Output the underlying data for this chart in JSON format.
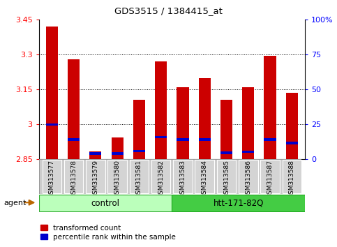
{
  "title": "GDS3515 / 1384415_at",
  "samples": [
    "GSM313577",
    "GSM313578",
    "GSM313579",
    "GSM313580",
    "GSM313581",
    "GSM313582",
    "GSM313583",
    "GSM313584",
    "GSM313585",
    "GSM313586",
    "GSM313587",
    "GSM313588"
  ],
  "bar_values": [
    3.42,
    3.28,
    2.885,
    2.945,
    3.105,
    3.27,
    3.16,
    3.2,
    3.105,
    3.16,
    3.295,
    3.135
  ],
  "percentile_values": [
    3.0,
    2.935,
    2.875,
    2.875,
    2.885,
    2.945,
    2.935,
    2.935,
    2.878,
    2.882,
    2.935,
    2.92
  ],
  "ymin": 2.85,
  "ymax": 3.45,
  "yticks": [
    2.85,
    3.0,
    3.15,
    3.3,
    3.45
  ],
  "ytick_labels": [
    "2.85",
    "3",
    "3.15",
    "3.3",
    "3.45"
  ],
  "right_yticks": [
    0,
    25,
    50,
    75,
    100
  ],
  "right_ytick_labels": [
    "0",
    "25",
    "50",
    "75",
    "100%"
  ],
  "bar_color": "#cc0000",
  "percentile_color": "#0000cc",
  "bar_width": 0.55,
  "control_bg_light": "#ccffcc",
  "control_bg_dark": "#55cc55",
  "legend_labels": [
    "transformed count",
    "percentile rank within the sample"
  ],
  "grid_lines": [
    3.0,
    3.15,
    3.3
  ]
}
